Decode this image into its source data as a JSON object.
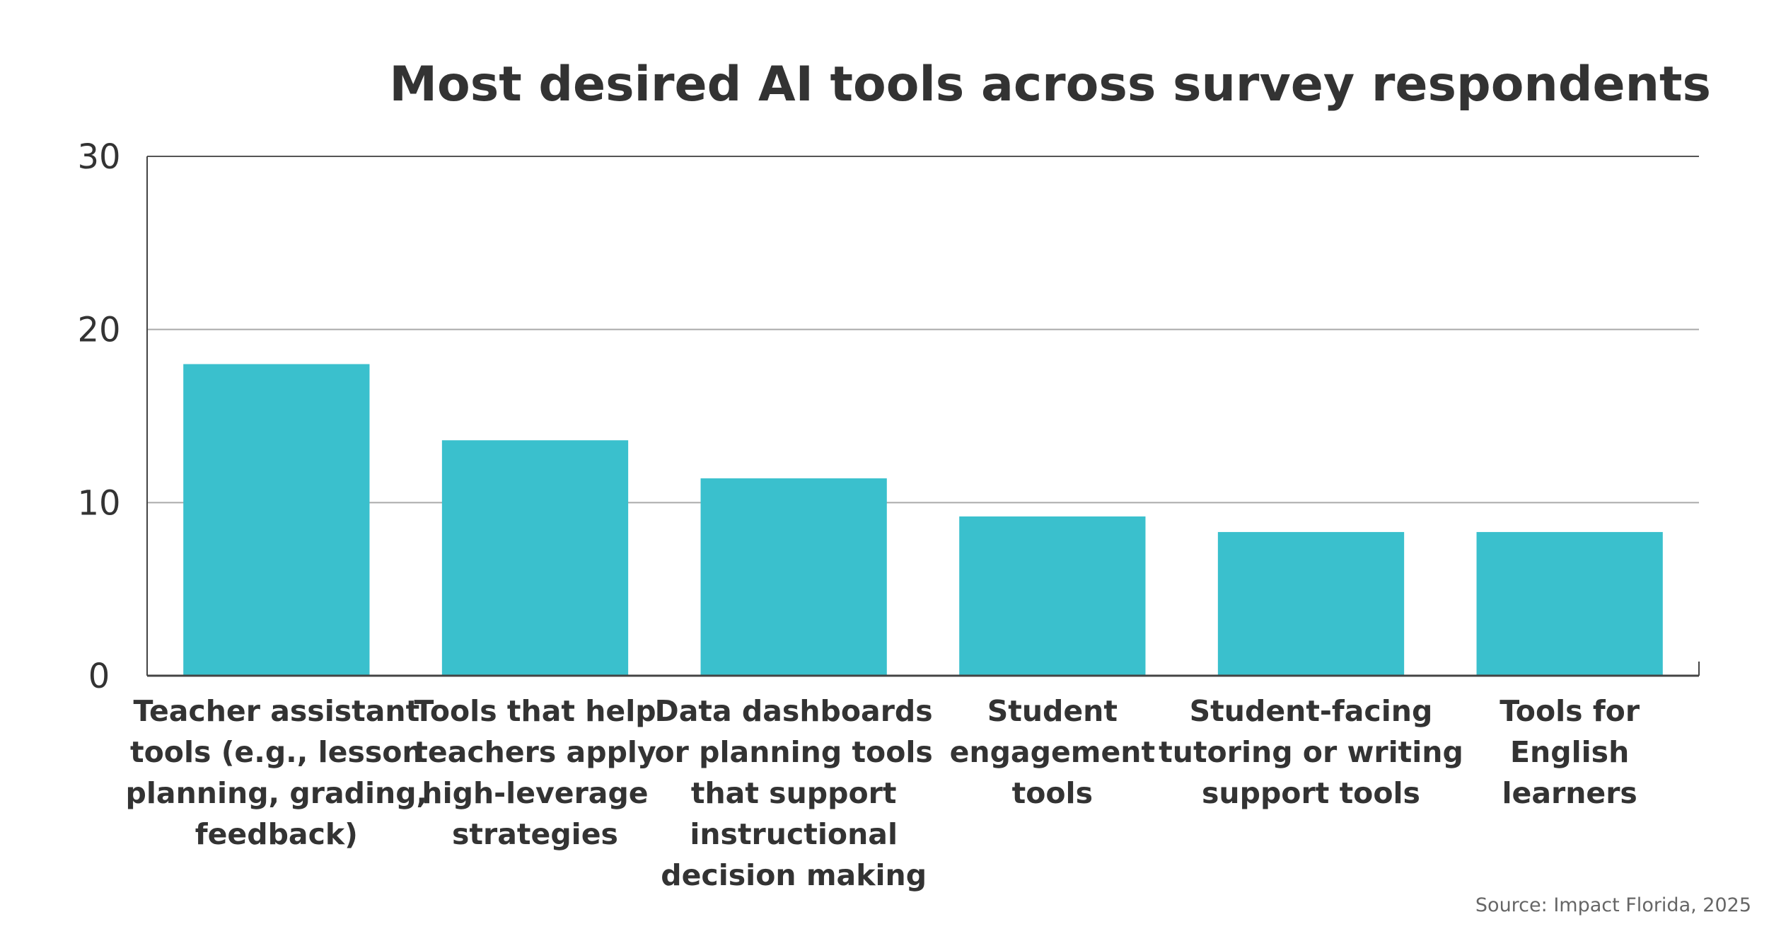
{
  "chart_data": {
    "type": "bar",
    "title": "Most desired AI tools across survey respondents",
    "xlabel": "",
    "ylabel": "",
    "ylim": [
      0,
      30
    ],
    "yticks": [
      "0",
      "10",
      "20",
      "30"
    ],
    "grid": true,
    "categories": [
      [
        "Teacher assistant",
        "tools (e.g., lesson",
        "planning, grading,",
        "feedback)"
      ],
      [
        "Tools that help",
        "teachers apply",
        "high-leverage",
        "strategies"
      ],
      [
        "Data dashboards",
        "or planning tools",
        "that support",
        "instructional",
        "decision making"
      ],
      [
        "Student",
        "engagement",
        "tools"
      ],
      [
        "Student-facing",
        "tutoring or writing",
        "support tools"
      ],
      [
        "Tools for",
        "English",
        "learners"
      ]
    ],
    "values": [
      18,
      13.6,
      11.4,
      9.2,
      8.3,
      8.3
    ],
    "source": "Source: Impact Florida, 2025"
  },
  "colors": {
    "bar": "#3AC0CD",
    "grid": "#AAAAAA",
    "axis": "#444444",
    "text": "#333333"
  }
}
